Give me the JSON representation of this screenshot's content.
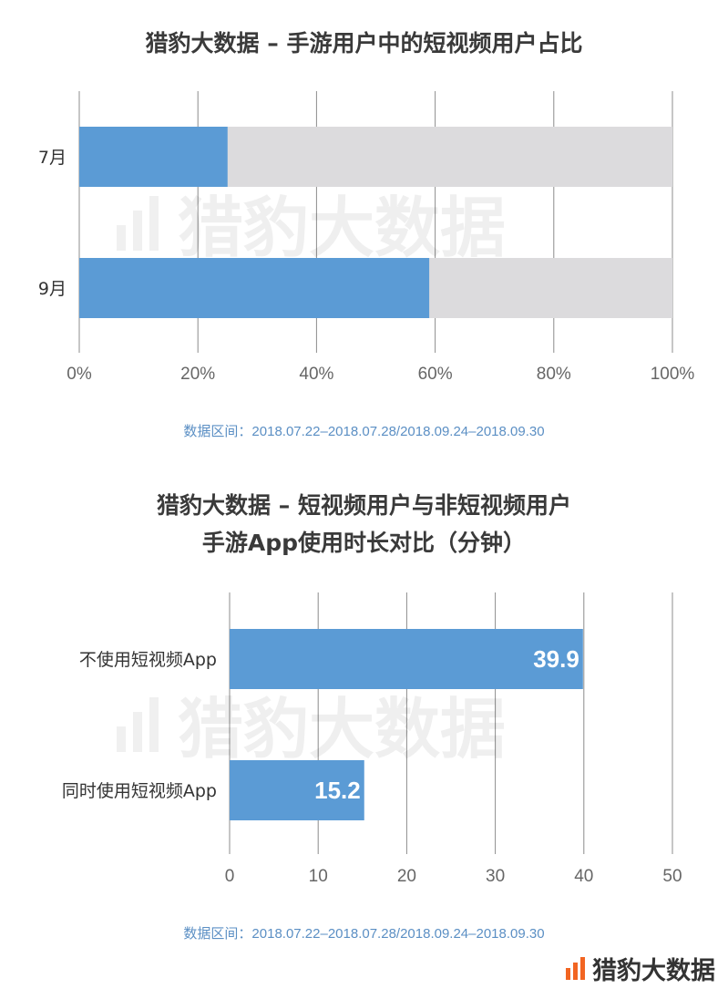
{
  "chart_data": [
    {
      "type": "bar",
      "orientation": "horizontal",
      "stacked": true,
      "title": "猎豹大数据 – 手游用户中的短视频用户占比",
      "categories": [
        "7月",
        "9月"
      ],
      "values": [
        25,
        59
      ],
      "colors": {
        "value": "#5b9bd5",
        "remainder": "#dcdbdd"
      },
      "xlim": [
        0,
        100
      ],
      "xticks": [
        "0%",
        "20%",
        "40%",
        "60%",
        "80%",
        "100%"
      ],
      "grid": true,
      "note": "数据区间：2018.07.22–2018.07.28/2018.09.24–2018.09.30"
    },
    {
      "type": "bar",
      "orientation": "horizontal",
      "title_lines": [
        "猎豹大数据 – 短视频用户与非短视频用户",
        "手游App使用时长对比（分钟）"
      ],
      "categories": [
        "不使用短视频App",
        "同时使用短视频App"
      ],
      "values": [
        39.9,
        15.2
      ],
      "data_labels": [
        "39.9",
        "15.2"
      ],
      "colors": {
        "value": "#5b9bd5"
      },
      "xlim": [
        0,
        50
      ],
      "xticks": [
        "0",
        "10",
        "20",
        "30",
        "40",
        "50"
      ],
      "grid": true,
      "note": "数据区间：2018.07.22–2018.07.28/2018.09.24–2018.09.30"
    }
  ],
  "watermark": "猎豹大数据",
  "brand": {
    "name": "猎豹大数据",
    "accent": "#f26522"
  }
}
